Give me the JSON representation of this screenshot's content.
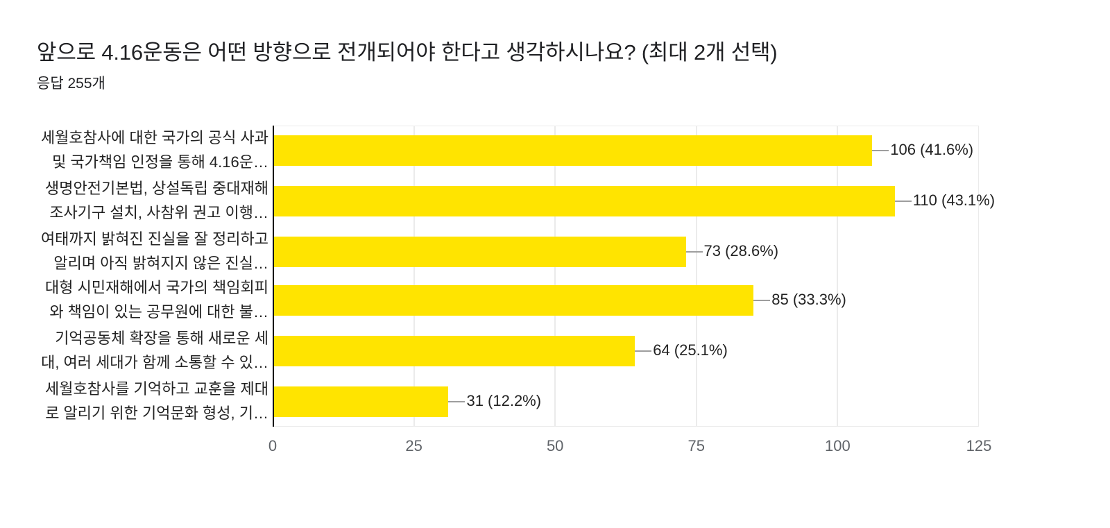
{
  "header": {
    "title": "앞으로 4.16운동은 어떤 방향으로 전개되어야 한다고 생각하시나요? (최대 2개 선택)",
    "response_count": "응답 255개"
  },
  "chart_data": {
    "type": "bar",
    "orientation": "horizontal",
    "title": "앞으로 4.16운동은 어떤 방향으로 전개되어야 한다고 생각하시나요? (최대 2개 선택)",
    "subtitle": "응답 255개",
    "xlabel": "",
    "ylabel": "",
    "xlim": [
      0,
      125
    ],
    "grid": true,
    "legend": "none",
    "bar_color": "#ffe400",
    "x_ticks": [
      "0",
      "25",
      "50",
      "75",
      "100",
      "125"
    ],
    "categories": [
      [
        "세월호참사에 대한 국가의 공식 사과",
        "및 국가책임 인정을 통해 4.16운…"
      ],
      [
        "생명안전기본법, 상설독립 중대재해",
        "조사기구 설치, 사참위 권고 이행…"
      ],
      [
        "여태까지 밝혀진 진실을 잘 정리하고",
        "알리며 아직 밝혀지지 않은 진실…"
      ],
      [
        "대형 시민재해에서 국가의 책임회피",
        "와 책임이 있는 공무원에 대한 불…"
      ],
      [
        "기억공동체 확장을 통해 새로운 세",
        "대, 여러 세대가 함께 소통할 수 있…"
      ],
      [
        "세월호참사를 기억하고 교훈을 제대",
        "로 알리기 위한 기억문화 형성, 기…"
      ]
    ],
    "values": [
      106,
      110,
      73,
      85,
      64,
      31
    ],
    "percentages": [
      "41.6%",
      "43.1%",
      "28.6%",
      "33.3%",
      "25.1%",
      "12.2%"
    ],
    "data_labels": [
      "106 (41.6%)",
      "110 (43.1%)",
      "73 (28.6%)",
      "85 (33.3%)",
      "64 (25.1%)",
      "31 (12.2%)"
    ]
  }
}
